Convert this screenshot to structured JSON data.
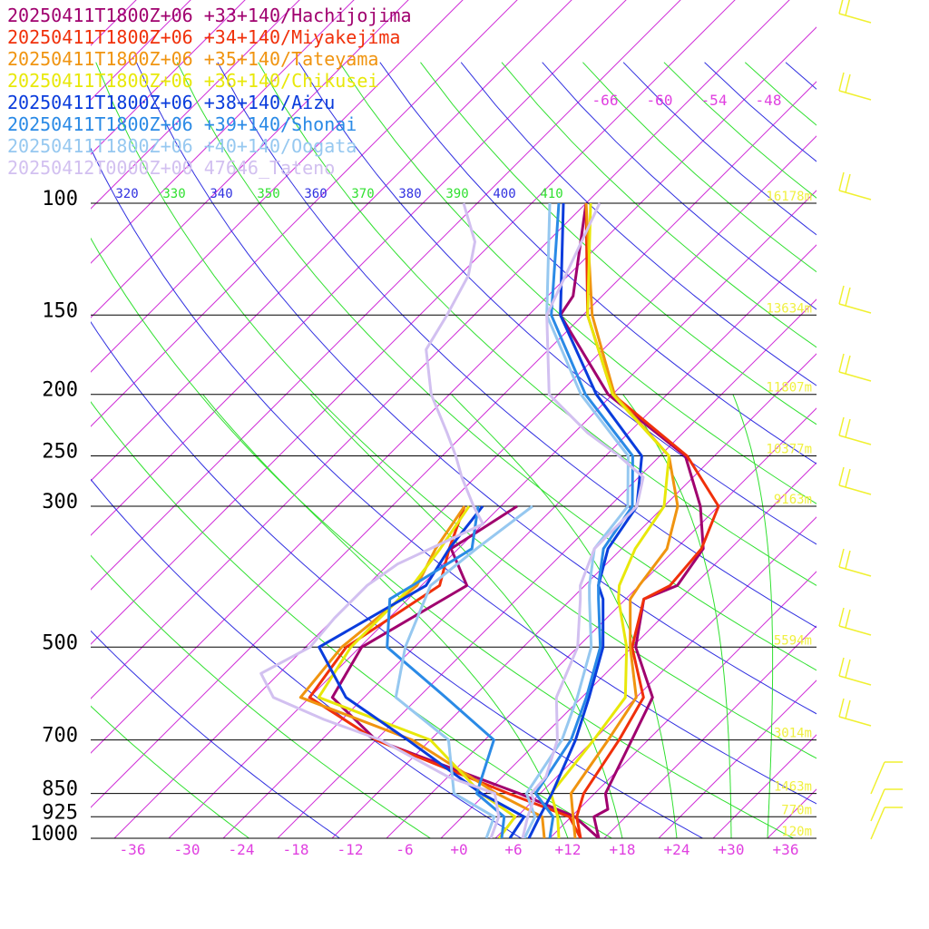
{
  "chart_data": {
    "type": "line",
    "legend": [
      {
        "label": "20250411T1800Z+06 +33+140/Hachijojima",
        "color": "#a0006e"
      },
      {
        "label": "20250411T1800Z+06 +34+140/Miyakejima",
        "color": "#f0300a"
      },
      {
        "label": "20250411T1800Z+06 +35+140/Tateyama",
        "color": "#f09410"
      },
      {
        "label": "20250411T1800Z+06 +36+140/Chikusei",
        "color": "#e8e80a"
      },
      {
        "label": "20250411T1800Z+06 +38+140/Aizu",
        "color": "#0a3cdc"
      },
      {
        "label": "20250411T1800Z+06 +39+140/Shonai",
        "color": "#2a8ae6"
      },
      {
        "label": "20250411T1800Z+06 +40+140/Oogata",
        "color": "#96c8f0"
      },
      {
        "label": "20250412T0000Z+00 47646_Tateno",
        "color": "#d2c0f0"
      }
    ],
    "pressure_levels": [
      {
        "p": 100,
        "label": "100",
        "height": "16178m"
      },
      {
        "p": 150,
        "label": "150",
        "height": "13634m"
      },
      {
        "p": 200,
        "label": "200",
        "height": "11807m"
      },
      {
        "p": 250,
        "label": "250",
        "height": "10377m"
      },
      {
        "p": 300,
        "label": "300",
        "height": "9163m"
      },
      {
        "p": 500,
        "label": "500",
        "height": "5594m"
      },
      {
        "p": 700,
        "label": "700",
        "height": "3014m"
      },
      {
        "p": 850,
        "label": "850",
        "height": "1463m"
      },
      {
        "p": 925,
        "label": "925",
        "height": "770m"
      },
      {
        "p": 1000,
        "label": "1000",
        "height": "120m"
      }
    ],
    "temperature_ticks": [
      "-36",
      "-30",
      "-24",
      "-18",
      "-12",
      "-6",
      "+0",
      "+6",
      "+12",
      "+18",
      "+24",
      "+30",
      "+36"
    ],
    "theta_labels": [
      "320",
      "330",
      "340",
      "350",
      "360",
      "370",
      "380",
      "390",
      "400",
      "410"
    ],
    "mixing_labels": [
      "-66",
      "-60",
      "-54",
      "-48"
    ],
    "xlim": [
      -40,
      40
    ],
    "ylim": [
      1000,
      100
    ],
    "series": [
      {
        "name": "Hachijojima",
        "color": "#a0006e",
        "temp": [
          [
            1000,
            15.4
          ],
          [
            925,
            12.5
          ],
          [
            900,
            13.2
          ],
          [
            850,
            11.2
          ],
          [
            700,
            8.2
          ],
          [
            600,
            5.8
          ],
          [
            500,
            -1.6
          ],
          [
            420,
            -6.0
          ],
          [
            400,
            -3.8
          ],
          [
            350,
            -5.0
          ],
          [
            300,
            -10.0
          ],
          [
            250,
            -17.2
          ],
          [
            200,
            -32.5
          ],
          [
            150,
            -46.5
          ],
          [
            140,
            -47.2
          ],
          [
            100,
            -56.0
          ]
        ],
        "dew": [
          [
            1000,
            15.4
          ],
          [
            925,
            10.4
          ],
          [
            850,
            1.7
          ],
          [
            700,
            -20.0
          ],
          [
            600,
            -29.5
          ],
          [
            500,
            -31.8
          ],
          [
            400,
            -27.0
          ],
          [
            350,
            -32.8
          ],
          [
            300,
            -30.2
          ]
        ]
      },
      {
        "name": "Miyakejima",
        "color": "#f0300a",
        "temp": [
          [
            1000,
            13.4
          ],
          [
            925,
            10.6
          ],
          [
            850,
            8.8
          ],
          [
            700,
            6.8
          ],
          [
            600,
            4.8
          ],
          [
            500,
            -2.0
          ],
          [
            420,
            -6.0
          ],
          [
            400,
            -4.6
          ],
          [
            350,
            -5.2
          ],
          [
            300,
            -8.0
          ],
          [
            250,
            -17.0
          ],
          [
            200,
            -32.0
          ],
          [
            150,
            -43.5
          ],
          [
            100,
            -56.0
          ]
        ],
        "dew": [
          [
            1000,
            13.4
          ],
          [
            925,
            9.8
          ],
          [
            850,
            0.5
          ],
          [
            700,
            -20.0
          ],
          [
            600,
            -32.0
          ],
          [
            500,
            -33.5
          ],
          [
            400,
            -30.0
          ],
          [
            350,
            -33.0
          ],
          [
            300,
            -36.0
          ]
        ]
      },
      {
        "name": "Tateyama",
        "color": "#f09410",
        "temp": [
          [
            1000,
            12.8
          ],
          [
            925,
            10.2
          ],
          [
            850,
            7.4
          ],
          [
            700,
            5.6
          ],
          [
            600,
            4.0
          ],
          [
            500,
            -2.2
          ],
          [
            420,
            -7.5
          ],
          [
            400,
            -8.0
          ],
          [
            350,
            -9.0
          ],
          [
            300,
            -12.5
          ],
          [
            250,
            -19.0
          ],
          [
            200,
            -31.8
          ],
          [
            150,
            -43.0
          ],
          [
            100,
            -56.0
          ]
        ],
        "dew": [
          [
            1000,
            9.4
          ],
          [
            925,
            6.8
          ],
          [
            850,
            -0.8
          ],
          [
            700,
            -16.0
          ],
          [
            600,
            -33.0
          ],
          [
            500,
            -34.0
          ],
          [
            400,
            -32.5
          ],
          [
            350,
            -34.5
          ],
          [
            300,
            -36.0
          ]
        ]
      },
      {
        "name": "Chikusei",
        "color": "#e8e80a",
        "temp": [
          [
            1000,
            11.0
          ],
          [
            925,
            8.5
          ],
          [
            850,
            5.2
          ],
          [
            700,
            4.0
          ],
          [
            600,
            2.8
          ],
          [
            500,
            -2.6
          ],
          [
            420,
            -8.8
          ],
          [
            400,
            -10.2
          ],
          [
            350,
            -12.5
          ],
          [
            300,
            -14.0
          ],
          [
            250,
            -19.0
          ],
          [
            200,
            -32.0
          ],
          [
            150,
            -43.5
          ],
          [
            100,
            -55.5
          ]
        ],
        "dew": [
          [
            1000,
            4.4
          ],
          [
            925,
            3.8
          ],
          [
            850,
            -2.5
          ],
          [
            700,
            -14.0
          ],
          [
            600,
            -31.0
          ],
          [
            500,
            -33.0
          ],
          [
            400,
            -33.0
          ],
          [
            350,
            -34.0
          ],
          [
            300,
            -35.5
          ]
        ]
      },
      {
        "name": "Aizu",
        "color": "#0a3cdc",
        "temp": [
          [
            1000,
            7.7
          ],
          [
            925,
            6.5
          ],
          [
            850,
            5.3
          ],
          [
            700,
            2.0
          ],
          [
            600,
            -1.2
          ],
          [
            500,
            -5.2
          ],
          [
            420,
            -10.5
          ],
          [
            400,
            -12.5
          ],
          [
            350,
            -15.5
          ],
          [
            300,
            -17.0
          ],
          [
            250,
            -22.0
          ],
          [
            200,
            -33.8
          ],
          [
            150,
            -46.5
          ],
          [
            100,
            -58.5
          ]
        ],
        "dew": [
          [
            1000,
            5.6
          ],
          [
            925,
            4.8
          ],
          [
            850,
            -2.5
          ],
          [
            700,
            -16.5
          ],
          [
            600,
            -28.0
          ],
          [
            500,
            -36.5
          ],
          [
            400,
            -31.5
          ],
          [
            350,
            -33.0
          ],
          [
            300,
            -34.0
          ]
        ]
      },
      {
        "name": "Shonai",
        "color": "#2a8ae6",
        "temp": [
          [
            1000,
            10.0
          ],
          [
            925,
            8.0
          ],
          [
            850,
            3.5
          ],
          [
            700,
            1.5
          ],
          [
            600,
            -1.5
          ],
          [
            500,
            -5.5
          ],
          [
            420,
            -11.0
          ],
          [
            400,
            -12.5
          ],
          [
            350,
            -16.0
          ],
          [
            300,
            -17.5
          ],
          [
            250,
            -23.0
          ],
          [
            200,
            -35.0
          ],
          [
            150,
            -47.5
          ],
          [
            100,
            -59.0
          ]
        ],
        "dew": [
          [
            1000,
            4.7
          ],
          [
            925,
            2.6
          ],
          [
            850,
            -3.0
          ],
          [
            700,
            -7.0
          ],
          [
            600,
            -17.0
          ],
          [
            500,
            -29.0
          ],
          [
            420,
            -34.0
          ],
          [
            400,
            -33.0
          ],
          [
            350,
            -30.5
          ],
          [
            300,
            -34.5
          ]
        ]
      },
      {
        "name": "Oogata",
        "color": "#96c8f0",
        "temp": [
          [
            1000,
            7.2
          ],
          [
            925,
            6.0
          ],
          [
            850,
            2.5
          ],
          [
            700,
            0.5
          ],
          [
            600,
            -2.5
          ],
          [
            500,
            -6.5
          ],
          [
            420,
            -12.0
          ],
          [
            400,
            -13.5
          ],
          [
            350,
            -17.0
          ],
          [
            300,
            -18.0
          ],
          [
            250,
            -23.5
          ],
          [
            200,
            -35.5
          ],
          [
            150,
            -48.0
          ],
          [
            100,
            -60.0
          ]
        ],
        "dew": [
          [
            1000,
            3.0
          ],
          [
            925,
            1.5
          ],
          [
            850,
            -5.5
          ],
          [
            700,
            -12.0
          ],
          [
            600,
            -22.5
          ],
          [
            500,
            -27.0
          ],
          [
            400,
            -31.0
          ],
          [
            350,
            -30.0
          ],
          [
            300,
            -28.5
          ]
        ]
      },
      {
        "name": "47646_Tateno",
        "color": "#d2c0f0",
        "temp": [
          [
            1000,
            7.0
          ],
          [
            925,
            5.2
          ],
          [
            870,
            4.0
          ],
          [
            850,
            3.0
          ],
          [
            800,
            2.8
          ],
          [
            700,
            0.0
          ],
          [
            600,
            -4.8
          ],
          [
            500,
            -8.0
          ],
          [
            420,
            -13.0
          ],
          [
            400,
            -14.5
          ],
          [
            350,
            -17.0
          ],
          [
            300,
            -17.0
          ],
          [
            270,
            -19.5
          ],
          [
            250,
            -24.5
          ],
          [
            230,
            -30.5
          ],
          [
            200,
            -39.0
          ],
          [
            150,
            -48.0
          ],
          [
            100,
            -54.5
          ]
        ],
        "dew": [
          [
            1000,
            3.5
          ],
          [
            925,
            2.0
          ],
          [
            850,
            -1.0
          ],
          [
            800,
            -8.0
          ],
          [
            700,
            -19.5
          ],
          [
            650,
            -28.0
          ],
          [
            600,
            -36.0
          ],
          [
            550,
            -40.0
          ],
          [
            500,
            -37.5
          ],
          [
            450,
            -38.0
          ],
          [
            400,
            -38.0
          ],
          [
            370,
            -37.0
          ],
          [
            320,
            -32.0
          ],
          [
            300,
            -35.0
          ],
          [
            270,
            -39.5
          ],
          [
            250,
            -42.5
          ],
          [
            230,
            -46.0
          ],
          [
            200,
            -52.0
          ],
          [
            170,
            -57.5
          ],
          [
            150,
            -59.0
          ],
          [
            130,
            -61.0
          ],
          [
            115,
            -64.0
          ],
          [
            100,
            -69.5
          ]
        ]
      }
    ]
  }
}
